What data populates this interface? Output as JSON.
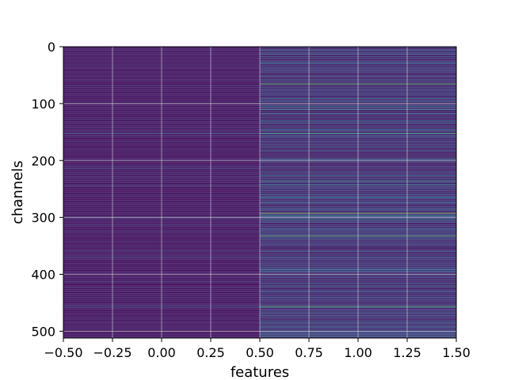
{
  "chart_data": {
    "type": "heatmap",
    "title": "",
    "xlabel": "features",
    "ylabel": "channels",
    "colormap": "viridis",
    "xlim": [
      -0.5,
      1.5
    ],
    "ylim": [
      512,
      0
    ],
    "y_inverted": true,
    "grid": true,
    "grid_color": "#d9d9d9",
    "columns": [
      0,
      1
    ],
    "n_channels": 512,
    "column_summary": [
      {
        "column": 0,
        "typical_level": 0.06,
        "description_level": "low"
      },
      {
        "column": 1,
        "typical_level": 0.12,
        "description_level": "low with bright rows"
      }
    ],
    "bright_rows": [
      {
        "column": 1,
        "row": 65,
        "level": 0.75
      },
      {
        "column": 1,
        "row": 104,
        "level": 0.45
      },
      {
        "column": 1,
        "row": 110,
        "level": 0.55
      },
      {
        "column": 1,
        "row": 134,
        "level": 0.35
      },
      {
        "column": 1,
        "row": 152,
        "level": 0.6
      },
      {
        "column": 1,
        "row": 176,
        "level": 0.35
      },
      {
        "column": 1,
        "row": 236,
        "level": 0.55
      },
      {
        "column": 1,
        "row": 242,
        "level": 0.45
      },
      {
        "column": 1,
        "row": 264,
        "level": 0.35
      },
      {
        "column": 1,
        "row": 292,
        "level": 0.8
      },
      {
        "column": 1,
        "row": 296,
        "level": 0.5
      },
      {
        "column": 1,
        "row": 332,
        "level": 0.7
      },
      {
        "column": 1,
        "row": 420,
        "level": 0.4
      },
      {
        "column": 1,
        "row": 456,
        "level": 0.7
      },
      {
        "column": 1,
        "row": 484,
        "level": 0.35
      },
      {
        "column": 1,
        "row": 492,
        "level": 0.4
      },
      {
        "column": 0,
        "row": 152,
        "level": 0.25
      },
      {
        "column": 0,
        "row": 244,
        "level": 0.2
      },
      {
        "column": 0,
        "row": 300,
        "level": 0.22
      },
      {
        "column": 0,
        "row": 456,
        "level": 0.25
      }
    ],
    "x_ticks": [
      {
        "value": -0.5,
        "label": "−0.50"
      },
      {
        "value": -0.25,
        "label": "−0.25"
      },
      {
        "value": 0.0,
        "label": "0.00"
      },
      {
        "value": 0.25,
        "label": "0.25"
      },
      {
        "value": 0.5,
        "label": "0.50"
      },
      {
        "value": 0.75,
        "label": "0.75"
      },
      {
        "value": 1.0,
        "label": "1.00"
      },
      {
        "value": 1.25,
        "label": "1.25"
      },
      {
        "value": 1.5,
        "label": "1.50"
      }
    ],
    "y_ticks": [
      {
        "value": 0,
        "label": "0"
      },
      {
        "value": 100,
        "label": "100"
      },
      {
        "value": 200,
        "label": "200"
      },
      {
        "value": 300,
        "label": "300"
      },
      {
        "value": 400,
        "label": "400"
      },
      {
        "value": 500,
        "label": "500"
      }
    ]
  }
}
